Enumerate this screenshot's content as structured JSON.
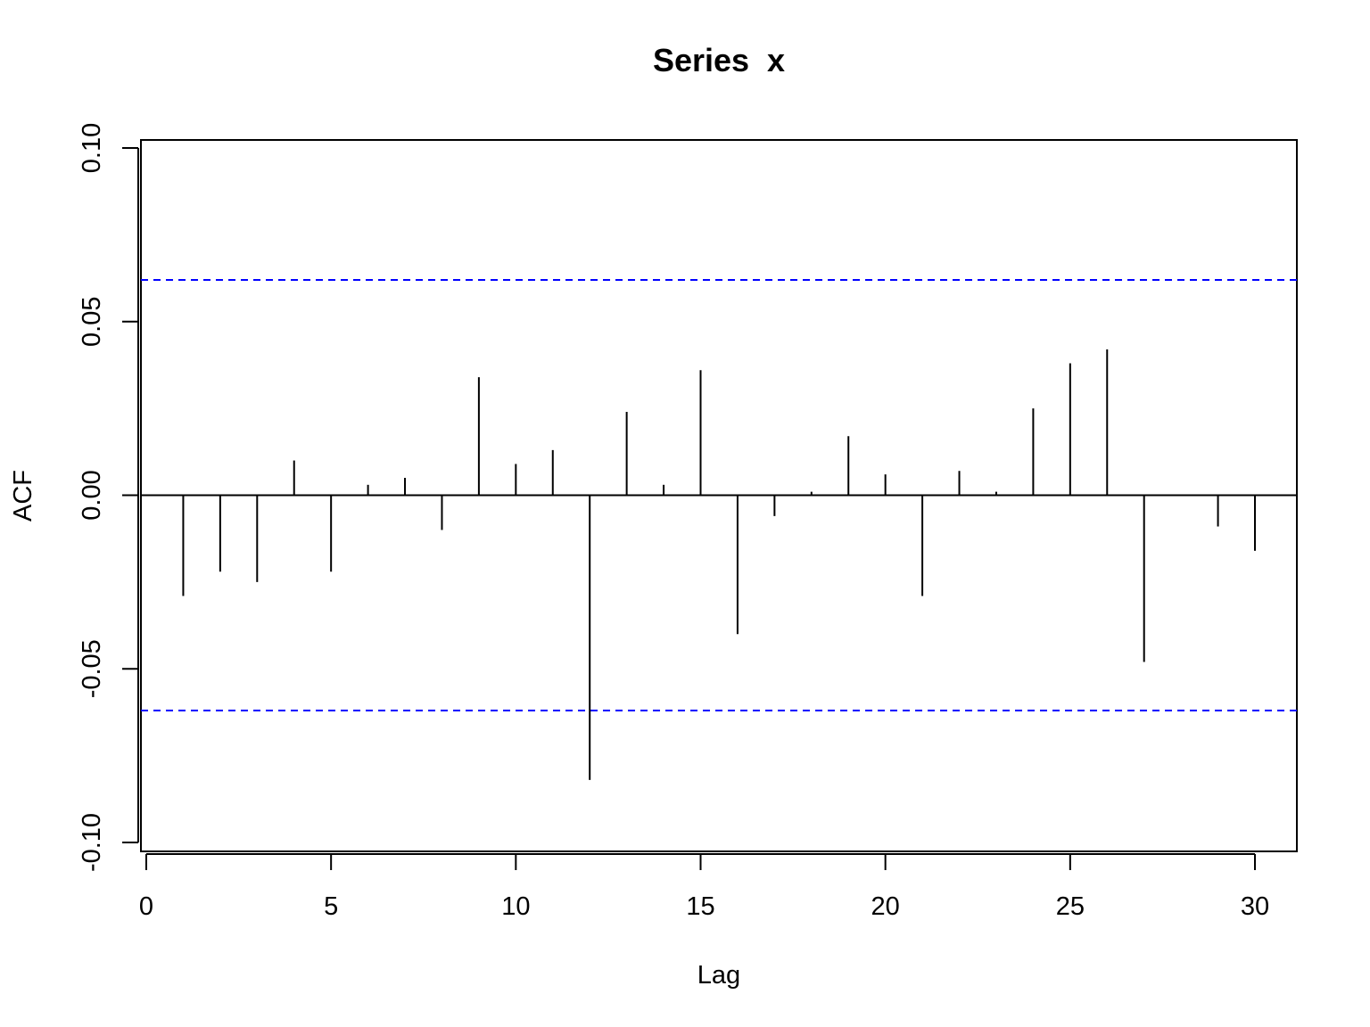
{
  "chart_data": {
    "type": "bar",
    "title": "Series  x",
    "xlabel": "Lag",
    "ylabel": "ACF",
    "xlim": [
      0,
      30
    ],
    "ylim": [
      -0.1,
      0.1
    ],
    "x_ticks": [
      0,
      5,
      10,
      15,
      20,
      25,
      30
    ],
    "x_tick_labels": [
      "0",
      "5",
      "10",
      "15",
      "20",
      "25",
      "30"
    ],
    "y_ticks": [
      -0.1,
      -0.05,
      0.0,
      0.05,
      0.1
    ],
    "y_tick_labels": [
      "-0.10",
      "-0.05",
      "0.00",
      "0.05",
      "0.10"
    ],
    "grid": false,
    "confidence_bound": 0.062,
    "confidence_color": "#0000ff",
    "bar_color": "#000000",
    "lags": [
      0,
      1,
      2,
      3,
      4,
      5,
      6,
      7,
      8,
      9,
      10,
      11,
      12,
      13,
      14,
      15,
      16,
      17,
      18,
      19,
      20,
      21,
      22,
      23,
      24,
      25,
      26,
      27,
      28,
      29,
      30
    ],
    "values": [
      0.0,
      -0.029,
      -0.022,
      -0.025,
      0.01,
      -0.022,
      0.003,
      0.005,
      -0.01,
      0.034,
      0.009,
      0.013,
      -0.082,
      0.024,
      0.003,
      0.036,
      -0.04,
      -0.006,
      0.001,
      0.017,
      0.006,
      -0.029,
      0.007,
      0.001,
      0.025,
      0.038,
      0.042,
      -0.048,
      0.0,
      -0.009,
      -0.016
    ]
  }
}
